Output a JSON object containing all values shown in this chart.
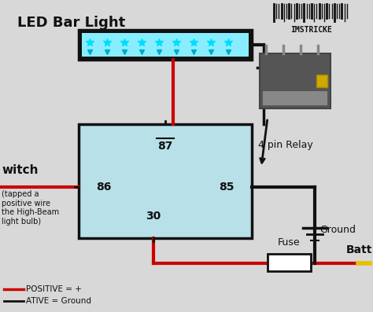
{
  "bg_color": "#d8d8d8",
  "title": "LED Bar Light",
  "relay_label": "4 pin Relay",
  "switch_label": "witch",
  "switch_sublabel": "(tapped a\npositive wire\nthe High-Beam\nlight bulb)",
  "ground_label": "Ground",
  "fuse_label": "Fuse",
  "batt_label": "Batt",
  "legend_positive": "POSITIVE = +",
  "legend_negative": "ATIVE = Ground",
  "red_color": "#cc0000",
  "black_color": "#111111",
  "yellow_color": "#e8c000",
  "led_light_color": "#88eeff",
  "relay_box_color": "#b8e0e8",
  "watermark": "IMSTRICKE"
}
